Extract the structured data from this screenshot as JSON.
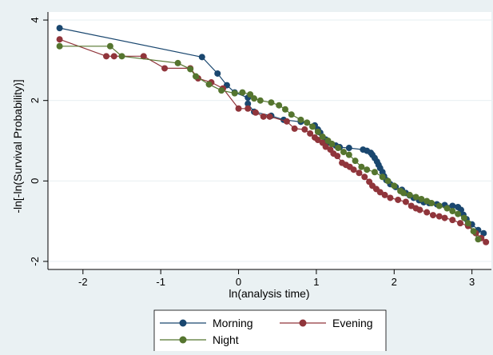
{
  "chart_data": {
    "type": "line",
    "xlabel": "ln(analysis time)",
    "ylabel": "-ln[-ln(Survival Probability)]",
    "xlim": [
      -2.45,
      3.25
    ],
    "ylim": [
      -2.2,
      4.2
    ],
    "x_ticks": [
      -2,
      -1,
      0,
      1,
      2,
      3
    ],
    "y_ticks": [
      -2,
      0,
      2,
      4
    ],
    "grid": "horizontal",
    "legend_position": "bottom",
    "series": [
      {
        "name": "Morning",
        "color": "#1a476f",
        "points": [
          [
            -2.3,
            3.8
          ],
          [
            -0.47,
            3.08
          ],
          [
            -0.27,
            2.67
          ],
          [
            -0.15,
            2.38
          ],
          [
            -0.05,
            2.2
          ],
          [
            0.12,
            2.07
          ],
          [
            0.12,
            1.92
          ],
          [
            0.2,
            1.72
          ],
          [
            0.42,
            1.62
          ],
          [
            0.58,
            1.52
          ],
          [
            0.8,
            1.47
          ],
          [
            0.98,
            1.38
          ],
          [
            1.02,
            1.28
          ],
          [
            1.05,
            1.2
          ],
          [
            1.12,
            1.03
          ],
          [
            1.15,
            0.95
          ],
          [
            1.2,
            0.92
          ],
          [
            1.25,
            0.88
          ],
          [
            1.3,
            0.84
          ],
          [
            1.42,
            0.82
          ],
          [
            1.6,
            0.78
          ],
          [
            1.65,
            0.75
          ],
          [
            1.7,
            0.7
          ],
          [
            1.72,
            0.65
          ],
          [
            1.75,
            0.57
          ],
          [
            1.78,
            0.48
          ],
          [
            1.8,
            0.4
          ],
          [
            1.82,
            0.32
          ],
          [
            1.85,
            0.22
          ],
          [
            1.87,
            0.12
          ],
          [
            1.9,
            0.02
          ],
          [
            1.95,
            -0.08
          ],
          [
            2.02,
            -0.15
          ],
          [
            2.1,
            -0.22
          ],
          [
            2.15,
            -0.3
          ],
          [
            2.2,
            -0.36
          ],
          [
            2.25,
            -0.42
          ],
          [
            2.32,
            -0.48
          ],
          [
            2.38,
            -0.53
          ],
          [
            2.45,
            -0.55
          ],
          [
            2.55,
            -0.58
          ],
          [
            2.65,
            -0.6
          ],
          [
            2.75,
            -0.62
          ],
          [
            2.82,
            -0.65
          ],
          [
            2.86,
            -0.72
          ],
          [
            2.89,
            -0.84
          ],
          [
            2.93,
            -0.95
          ],
          [
            3.0,
            -1.08
          ],
          [
            3.08,
            -1.22
          ],
          [
            3.15,
            -1.3
          ]
        ]
      },
      {
        "name": "Evening",
        "color": "#90353b",
        "points": [
          [
            -2.3,
            3.52
          ],
          [
            -1.7,
            3.1
          ],
          [
            -1.6,
            3.1
          ],
          [
            -1.22,
            3.1
          ],
          [
            -0.95,
            2.8
          ],
          [
            -0.62,
            2.8
          ],
          [
            -0.52,
            2.55
          ],
          [
            -0.35,
            2.45
          ],
          [
            -0.2,
            2.3
          ],
          [
            0.0,
            1.8
          ],
          [
            0.12,
            1.8
          ],
          [
            0.22,
            1.7
          ],
          [
            0.32,
            1.6
          ],
          [
            0.4,
            1.6
          ],
          [
            0.62,
            1.48
          ],
          [
            0.72,
            1.3
          ],
          [
            0.85,
            1.28
          ],
          [
            0.92,
            1.18
          ],
          [
            0.98,
            1.08
          ],
          [
            1.02,
            1.02
          ],
          [
            1.08,
            0.95
          ],
          [
            1.12,
            0.85
          ],
          [
            1.18,
            0.78
          ],
          [
            1.22,
            0.68
          ],
          [
            1.27,
            0.62
          ],
          [
            1.33,
            0.45
          ],
          [
            1.38,
            0.4
          ],
          [
            1.43,
            0.35
          ],
          [
            1.48,
            0.28
          ],
          [
            1.55,
            0.2
          ],
          [
            1.62,
            0.1
          ],
          [
            1.68,
            -0.02
          ],
          [
            1.72,
            -0.12
          ],
          [
            1.77,
            -0.2
          ],
          [
            1.82,
            -0.28
          ],
          [
            1.88,
            -0.35
          ],
          [
            1.95,
            -0.42
          ],
          [
            2.05,
            -0.47
          ],
          [
            2.15,
            -0.52
          ],
          [
            2.22,
            -0.62
          ],
          [
            2.28,
            -0.68
          ],
          [
            2.33,
            -0.72
          ],
          [
            2.42,
            -0.78
          ],
          [
            2.5,
            -0.85
          ],
          [
            2.58,
            -0.88
          ],
          [
            2.65,
            -0.92
          ],
          [
            2.75,
            -0.97
          ],
          [
            2.85,
            -1.05
          ],
          [
            2.95,
            -1.12
          ],
          [
            3.05,
            -1.3
          ],
          [
            3.12,
            -1.42
          ],
          [
            3.18,
            -1.52
          ]
        ]
      },
      {
        "name": "Night",
        "color": "#55752f",
        "points": [
          [
            -2.3,
            3.35
          ],
          [
            -1.65,
            3.35
          ],
          [
            -1.5,
            3.1
          ],
          [
            -0.78,
            2.93
          ],
          [
            -0.62,
            2.78
          ],
          [
            -0.55,
            2.6
          ],
          [
            -0.38,
            2.4
          ],
          [
            -0.22,
            2.25
          ],
          [
            -0.05,
            2.18
          ],
          [
            0.05,
            2.2
          ],
          [
            0.15,
            2.15
          ],
          [
            0.2,
            2.05
          ],
          [
            0.28,
            2.0
          ],
          [
            0.42,
            1.95
          ],
          [
            0.52,
            1.88
          ],
          [
            0.6,
            1.78
          ],
          [
            0.68,
            1.65
          ],
          [
            0.8,
            1.52
          ],
          [
            0.88,
            1.45
          ],
          [
            0.95,
            1.35
          ],
          [
            1.02,
            1.22
          ],
          [
            1.08,
            1.1
          ],
          [
            1.15,
            1.0
          ],
          [
            1.2,
            0.92
          ],
          [
            1.28,
            0.82
          ],
          [
            1.35,
            0.72
          ],
          [
            1.42,
            0.65
          ],
          [
            1.5,
            0.5
          ],
          [
            1.58,
            0.35
          ],
          [
            1.65,
            0.28
          ],
          [
            1.75,
            0.22
          ],
          [
            1.85,
            0.1
          ],
          [
            1.92,
            0.0
          ],
          [
            2.0,
            -0.12
          ],
          [
            2.08,
            -0.25
          ],
          [
            2.12,
            -0.3
          ],
          [
            2.2,
            -0.35
          ],
          [
            2.28,
            -0.4
          ],
          [
            2.35,
            -0.45
          ],
          [
            2.42,
            -0.5
          ],
          [
            2.48,
            -0.55
          ],
          [
            2.58,
            -0.62
          ],
          [
            2.68,
            -0.68
          ],
          [
            2.75,
            -0.75
          ],
          [
            2.82,
            -0.82
          ],
          [
            2.9,
            -0.92
          ],
          [
            2.95,
            -1.05
          ],
          [
            3.02,
            -1.25
          ],
          [
            3.08,
            -1.45
          ]
        ]
      }
    ]
  }
}
